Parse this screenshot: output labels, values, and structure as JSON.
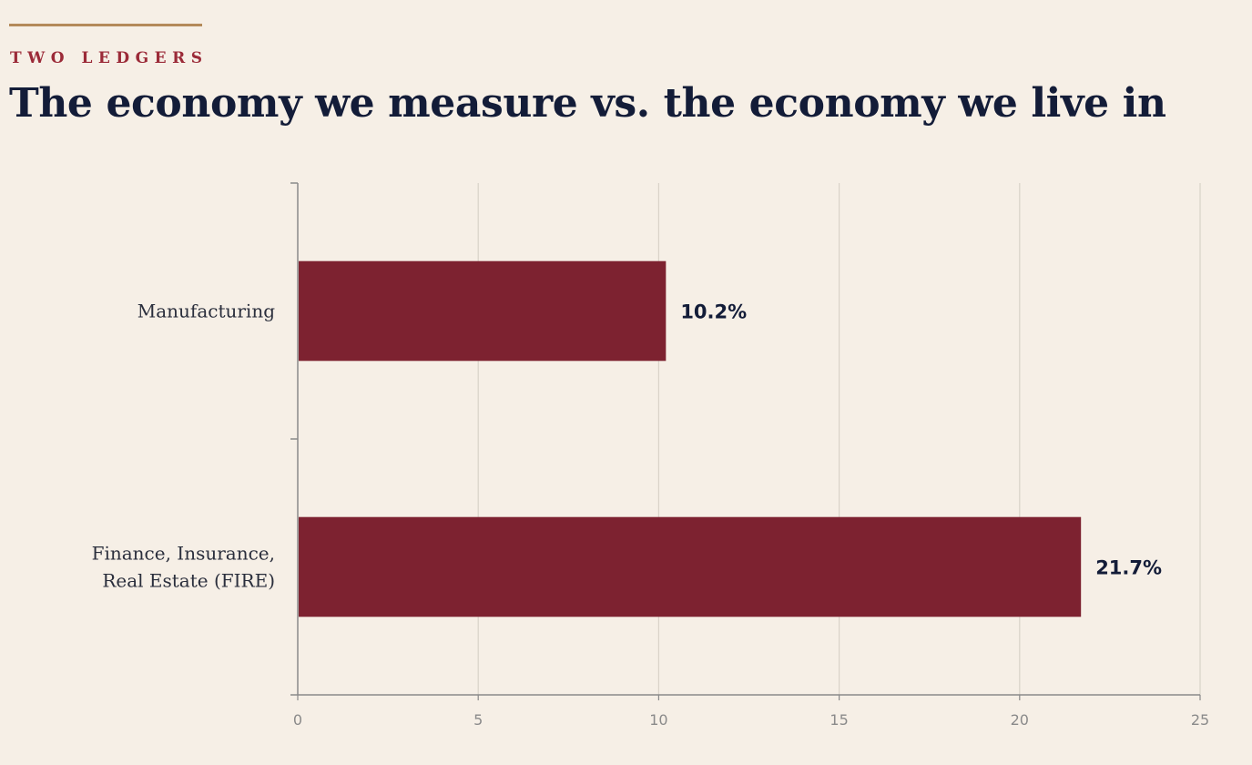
{
  "header": {
    "kicker": "TWO LEDGERS",
    "title": "The economy we measure vs. the economy we live in"
  },
  "colors": {
    "background": "#f6efe6",
    "bar": "#7d2230",
    "kicker": "#9b2a38",
    "title": "#131c38",
    "rule": "#b48a5a",
    "grid": "#d9d2c8",
    "axis": "#8a8a8a",
    "tick_label": "#8a8a8a",
    "category_label": "#2a2e3c",
    "value_label": "#131c38"
  },
  "chart_data": {
    "type": "bar",
    "orientation": "horizontal",
    "categories": [
      [
        "Manufacturing"
      ],
      [
        "Finance, Insurance,",
        "Real Estate (FIRE)"
      ]
    ],
    "values": [
      10.2,
      21.7
    ],
    "value_labels": [
      "10.2%",
      "21.7%"
    ],
    "xlim": [
      0,
      25
    ],
    "xticks": [
      0,
      5,
      10,
      15,
      20,
      25
    ],
    "grid": true,
    "xlabel": "",
    "ylabel": ""
  }
}
